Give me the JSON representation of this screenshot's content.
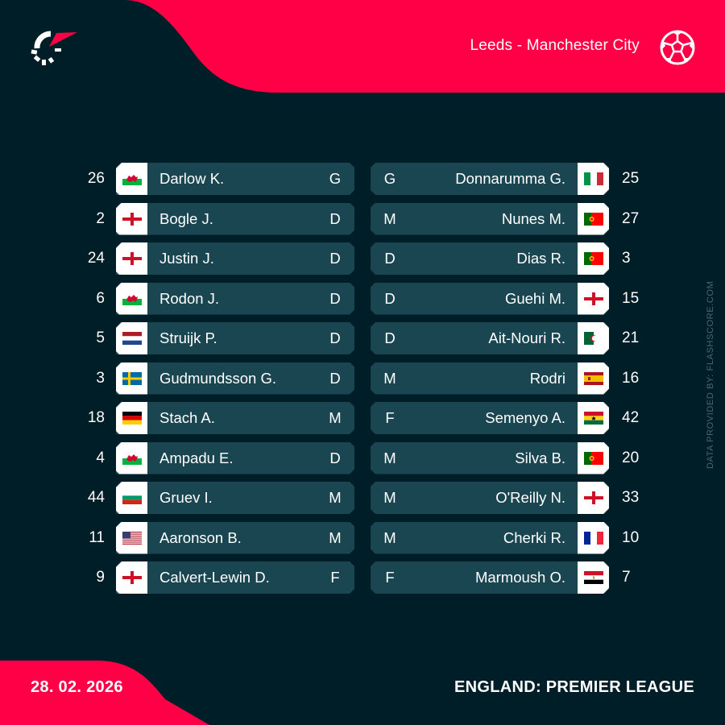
{
  "header": {
    "match_title": "Leeds - Manchester City",
    "logo_icon": "flashscore-logo-icon",
    "sport_icon": "football-icon"
  },
  "colors": {
    "background": "#001e28",
    "accent": "#ff0046",
    "row_bar": "#1a4652",
    "flag_box": "#ffffff",
    "credit_text": "#4b6670"
  },
  "home": {
    "team": "Leeds",
    "players": [
      {
        "number": "26",
        "flag": "wales",
        "name": "Darlow K.",
        "position": "G"
      },
      {
        "number": "2",
        "flag": "england",
        "name": "Bogle J.",
        "position": "D"
      },
      {
        "number": "24",
        "flag": "england",
        "name": "Justin J.",
        "position": "D"
      },
      {
        "number": "6",
        "flag": "wales",
        "name": "Rodon J.",
        "position": "D"
      },
      {
        "number": "5",
        "flag": "netherlands",
        "name": "Struijk P.",
        "position": "D"
      },
      {
        "number": "3",
        "flag": "sweden",
        "name": "Gudmundsson G.",
        "position": "D"
      },
      {
        "number": "18",
        "flag": "germany",
        "name": "Stach A.",
        "position": "M"
      },
      {
        "number": "4",
        "flag": "wales",
        "name": "Ampadu E.",
        "position": "D"
      },
      {
        "number": "44",
        "flag": "bulgaria",
        "name": "Gruev I.",
        "position": "M"
      },
      {
        "number": "11",
        "flag": "usa",
        "name": "Aaronson B.",
        "position": "M"
      },
      {
        "number": "9",
        "flag": "england",
        "name": "Calvert-Lewin D.",
        "position": "F"
      }
    ]
  },
  "away": {
    "team": "Manchester City",
    "players": [
      {
        "number": "25",
        "flag": "italy",
        "name": "Donnarumma G.",
        "position": "G"
      },
      {
        "number": "27",
        "flag": "portugal",
        "name": "Nunes M.",
        "position": "M"
      },
      {
        "number": "3",
        "flag": "portugal",
        "name": "Dias R.",
        "position": "D"
      },
      {
        "number": "15",
        "flag": "england",
        "name": "Guehi M.",
        "position": "D"
      },
      {
        "number": "21",
        "flag": "algeria",
        "name": "Ait-Nouri R.",
        "position": "D"
      },
      {
        "number": "16",
        "flag": "spain",
        "name": "Rodri",
        "position": "M"
      },
      {
        "number": "42",
        "flag": "ghana",
        "name": "Semenyo A.",
        "position": "F"
      },
      {
        "number": "20",
        "flag": "portugal",
        "name": "Silva B.",
        "position": "M"
      },
      {
        "number": "33",
        "flag": "england",
        "name": "O'Reilly N.",
        "position": "M"
      },
      {
        "number": "10",
        "flag": "france",
        "name": "Cherki R.",
        "position": "M"
      },
      {
        "number": "7",
        "flag": "egypt",
        "name": "Marmoush O.",
        "position": "F"
      }
    ]
  },
  "footer": {
    "date": "28. 02. 2026",
    "league": "ENGLAND: PREMIER LEAGUE",
    "credit": "DATA PROVIDED BY: FLASHSCORE.COM"
  }
}
